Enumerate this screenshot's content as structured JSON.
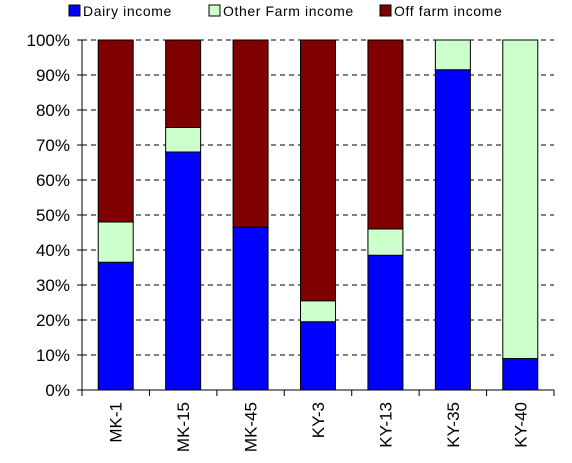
{
  "chart_data": {
    "type": "bar",
    "stacked": true,
    "normalized": true,
    "categories": [
      "MK-1",
      "MK-15",
      "MK-45",
      "KY-3",
      "KY-13",
      "KY-35",
      "KY-40"
    ],
    "series": [
      {
        "name": "Dairy income",
        "color": "#0000ff",
        "values": [
          36.5,
          68,
          46.5,
          19.5,
          38.5,
          91.5,
          9
        ]
      },
      {
        "name": "Other Farm income",
        "color": "#ccffcc",
        "values": [
          11.5,
          7,
          0,
          6,
          7.5,
          8.5,
          91
        ]
      },
      {
        "name": "Off farm income",
        "color": "#800000",
        "values": [
          52,
          25,
          53.5,
          74.5,
          54,
          0,
          0
        ]
      }
    ],
    "y_ticks": [
      "0%",
      "10%",
      "20%",
      "30%",
      "40%",
      "50%",
      "60%",
      "70%",
      "80%",
      "90%",
      "100%"
    ],
    "ylim": [
      0,
      100
    ],
    "grid": "dashed horizontal",
    "legend_position": "top",
    "title": "",
    "xlabel": "",
    "ylabel": ""
  }
}
